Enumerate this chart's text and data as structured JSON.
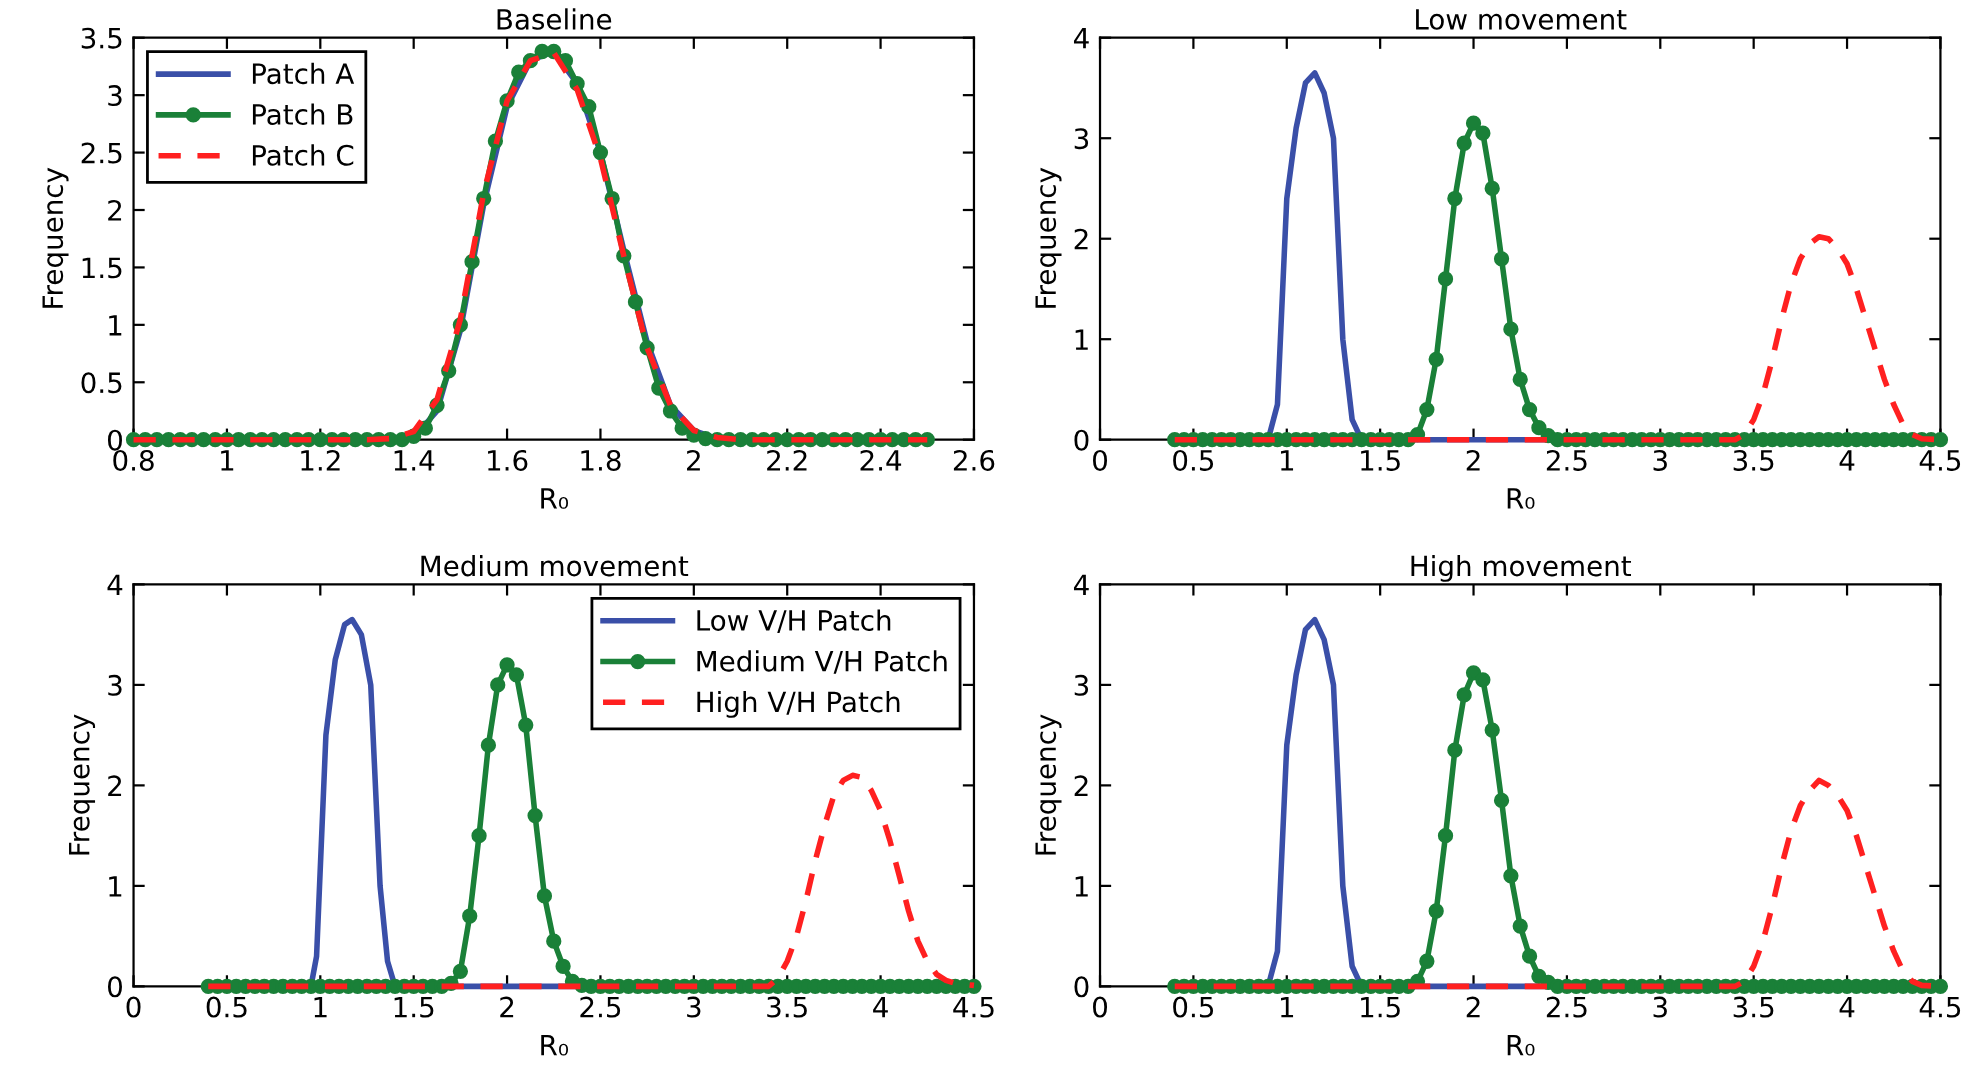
{
  "chart_data": [
    {
      "type": "line",
      "title": "Baseline",
      "xlabel": "R₀",
      "ylabel": "Frequency",
      "xlim": [
        0.8,
        2.6
      ],
      "xticks": [
        0.8,
        1,
        1.2,
        1.4,
        1.6,
        1.8,
        2,
        2.2,
        2.4,
        2.6
      ],
      "ylim": [
        0,
        3.5
      ],
      "yticks": [
        0,
        0.5,
        1,
        1.5,
        2,
        2.5,
        3,
        3.5
      ],
      "grid": false,
      "legend": "top left",
      "series": [
        {
          "name": "Patch A",
          "color": "#3a4fa8",
          "line_style": "solid",
          "marker": "none",
          "x": [
            0.8,
            1.3,
            1.4,
            1.45,
            1.5,
            1.55,
            1.6,
            1.65,
            1.7,
            1.75,
            1.8,
            1.85,
            1.9,
            1.95,
            2.0,
            2.05,
            2.1,
            2.5
          ],
          "values": [
            0,
            0,
            0.02,
            0.25,
            0.95,
            2.05,
            2.9,
            3.3,
            3.38,
            3.1,
            2.5,
            1.65,
            0.85,
            0.3,
            0.08,
            0.01,
            0,
            0
          ]
        },
        {
          "name": "Patch B",
          "color": "#1a8038",
          "line_style": "solid",
          "marker": "circle",
          "x": [
            0.8,
            0.825,
            0.85,
            0.875,
            0.9,
            0.925,
            0.95,
            0.975,
            1.0,
            1.025,
            1.05,
            1.075,
            1.1,
            1.125,
            1.15,
            1.175,
            1.2,
            1.225,
            1.25,
            1.275,
            1.3,
            1.325,
            1.35,
            1.375,
            1.4,
            1.425,
            1.45,
            1.475,
            1.5,
            1.525,
            1.55,
            1.575,
            1.6,
            1.625,
            1.65,
            1.675,
            1.7,
            1.725,
            1.75,
            1.775,
            1.8,
            1.825,
            1.85,
            1.875,
            1.9,
            1.925,
            1.95,
            1.975,
            2.0,
            2.025,
            2.05,
            2.075,
            2.1,
            2.125,
            2.15,
            2.175,
            2.2,
            2.225,
            2.25,
            2.275,
            2.3,
            2.325,
            2.35,
            2.375,
            2.4,
            2.425,
            2.45,
            2.475,
            2.5
          ],
          "values": [
            0,
            0,
            0,
            0,
            0,
            0,
            0,
            0,
            0,
            0,
            0,
            0,
            0,
            0,
            0,
            0,
            0,
            0,
            0,
            0,
            0,
            0,
            0,
            0,
            0.03,
            0.1,
            0.3,
            0.6,
            1.0,
            1.55,
            2.1,
            2.6,
            2.95,
            3.2,
            3.3,
            3.38,
            3.38,
            3.3,
            3.1,
            2.9,
            2.5,
            2.1,
            1.6,
            1.2,
            0.8,
            0.45,
            0.25,
            0.1,
            0.04,
            0.01,
            0,
            0,
            0,
            0,
            0,
            0,
            0,
            0,
            0,
            0,
            0,
            0,
            0,
            0,
            0,
            0,
            0,
            0,
            0
          ]
        },
        {
          "name": "Patch C",
          "color": "#ff2020",
          "line_style": "dashed",
          "marker": "none",
          "x": [
            0.8,
            1.3,
            1.35,
            1.4,
            1.45,
            1.5,
            1.55,
            1.6,
            1.65,
            1.7,
            1.75,
            1.8,
            1.85,
            1.9,
            1.95,
            2.0,
            2.05,
            2.1,
            2.5
          ],
          "values": [
            0,
            0,
            0.01,
            0.07,
            0.35,
            1.05,
            2.15,
            2.95,
            3.3,
            3.37,
            3.05,
            2.45,
            1.6,
            0.8,
            0.3,
            0.08,
            0.02,
            0,
            0
          ]
        }
      ]
    },
    {
      "type": "line",
      "title": "Low movement",
      "xlabel": "R₀",
      "ylabel": "Frequency",
      "xlim": [
        0,
        4.5
      ],
      "xticks": [
        0,
        0.5,
        1,
        1.5,
        2,
        2.5,
        3,
        3.5,
        4,
        4.5
      ],
      "ylim": [
        0,
        4
      ],
      "yticks": [
        0,
        1,
        2,
        3,
        4
      ],
      "grid": false,
      "series": [
        {
          "color": "#3a4fa8",
          "line_style": "solid",
          "marker": "none",
          "x": [
            0.4,
            0.9,
            0.95,
            1.0,
            1.05,
            1.1,
            1.15,
            1.2,
            1.25,
            1.3,
            1.35,
            1.4,
            2.4
          ],
          "values": [
            0,
            0,
            0.35,
            2.4,
            3.1,
            3.55,
            3.65,
            3.45,
            3.0,
            1.0,
            0.2,
            0,
            0
          ]
        },
        {
          "color": "#1a8038",
          "line_style": "solid",
          "marker": "circle",
          "x": [
            0.4,
            0.45,
            0.5,
            0.55,
            0.6,
            0.65,
            0.7,
            0.75,
            0.8,
            0.85,
            0.9,
            0.95,
            1.0,
            1.05,
            1.1,
            1.15,
            1.2,
            1.25,
            1.3,
            1.35,
            1.4,
            1.45,
            1.5,
            1.55,
            1.6,
            1.65,
            1.7,
            1.75,
            1.8,
            1.85,
            1.9,
            1.95,
            2.0,
            2.05,
            2.1,
            2.15,
            2.2,
            2.25,
            2.3,
            2.35,
            2.4,
            2.45,
            2.5,
            2.55,
            2.6,
            2.65,
            2.7,
            2.75,
            2.8,
            2.85,
            2.9,
            2.95,
            3.0,
            3.05,
            3.1,
            3.15,
            3.2,
            3.25,
            3.3,
            3.35,
            3.4,
            3.45,
            3.5,
            3.55,
            3.6,
            3.65,
            3.7,
            3.75,
            3.8,
            3.85,
            3.9,
            3.95,
            4.0,
            4.05,
            4.1,
            4.15,
            4.2,
            4.25,
            4.3,
            4.35,
            4.4,
            4.45,
            4.5
          ],
          "values": [
            0,
            0,
            0,
            0,
            0,
            0,
            0,
            0,
            0,
            0,
            0,
            0,
            0,
            0,
            0,
            0,
            0,
            0,
            0,
            0,
            0,
            0,
            0,
            0,
            0,
            0,
            0.05,
            0.3,
            0.8,
            1.6,
            2.4,
            2.95,
            3.15,
            3.05,
            2.5,
            1.8,
            1.1,
            0.6,
            0.3,
            0.12,
            0.04,
            0,
            0,
            0,
            0,
            0,
            0,
            0,
            0,
            0,
            0,
            0,
            0,
            0,
            0,
            0,
            0,
            0,
            0,
            0,
            0,
            0,
            0,
            0,
            0,
            0,
            0,
            0,
            0,
            0,
            0,
            0,
            0,
            0,
            0,
            0,
            0,
            0,
            0,
            0,
            0,
            0,
            0
          ]
        },
        {
          "color": "#ff2020",
          "line_style": "dashed",
          "marker": "none",
          "x": [
            0.4,
            3.4,
            3.45,
            3.5,
            3.55,
            3.6,
            3.65,
            3.7,
            3.75,
            3.8,
            3.85,
            3.9,
            3.95,
            4.0,
            4.05,
            4.1,
            4.15,
            4.2,
            4.25,
            4.3,
            4.35,
            4.4,
            4.5
          ],
          "values": [
            0,
            0,
            0.05,
            0.2,
            0.45,
            0.8,
            1.2,
            1.55,
            1.8,
            1.95,
            2.02,
            2.0,
            1.9,
            1.75,
            1.5,
            1.2,
            0.9,
            0.6,
            0.35,
            0.15,
            0.05,
            0.01,
            0
          ]
        }
      ]
    },
    {
      "type": "line",
      "title": "Medium movement",
      "xlabel": "R₀",
      "ylabel": "Frequency",
      "xlim": [
        0,
        4.5
      ],
      "xticks": [
        0,
        0.5,
        1,
        1.5,
        2,
        2.5,
        3,
        3.5,
        4,
        4.5
      ],
      "ylim": [
        0,
        4
      ],
      "yticks": [
        0,
        1,
        2,
        3,
        4
      ],
      "grid": false,
      "legend": "top right",
      "series": [
        {
          "name": "Low V/H Patch",
          "color": "#3a4fa8",
          "line_style": "solid",
          "marker": "none",
          "x": [
            0.4,
            0.95,
            0.98,
            1.03,
            1.08,
            1.13,
            1.17,
            1.22,
            1.27,
            1.32,
            1.36,
            1.4,
            2.4
          ],
          "values": [
            0,
            0,
            0.3,
            2.5,
            3.25,
            3.6,
            3.65,
            3.5,
            3.0,
            1.0,
            0.25,
            0,
            0
          ]
        },
        {
          "name": "Medium V/H Patch",
          "color": "#1a8038",
          "line_style": "solid",
          "marker": "circle",
          "x": [
            0.4,
            0.45,
            0.5,
            0.55,
            0.6,
            0.65,
            0.7,
            0.75,
            0.8,
            0.85,
            0.9,
            0.95,
            1.0,
            1.05,
            1.1,
            1.15,
            1.2,
            1.25,
            1.3,
            1.35,
            1.4,
            1.45,
            1.5,
            1.55,
            1.6,
            1.65,
            1.7,
            1.75,
            1.8,
            1.85,
            1.9,
            1.95,
            2.0,
            2.05,
            2.1,
            2.15,
            2.2,
            2.25,
            2.3,
            2.35,
            2.4,
            2.45,
            2.5,
            2.55,
            2.6,
            2.65,
            2.7,
            2.75,
            2.8,
            2.85,
            2.9,
            2.95,
            3.0,
            3.05,
            3.1,
            3.15,
            3.2,
            3.25,
            3.3,
            3.35,
            3.4,
            3.45,
            3.5,
            3.55,
            3.6,
            3.65,
            3.7,
            3.75,
            3.8,
            3.85,
            3.9,
            3.95,
            4.0,
            4.05,
            4.1,
            4.15,
            4.2,
            4.25,
            4.3,
            4.35,
            4.4,
            4.45,
            4.5
          ],
          "values": [
            0,
            0,
            0,
            0,
            0,
            0,
            0,
            0,
            0,
            0,
            0,
            0,
            0,
            0,
            0,
            0,
            0,
            0,
            0,
            0,
            0,
            0,
            0,
            0,
            0,
            0,
            0.03,
            0.15,
            0.7,
            1.5,
            2.4,
            3.0,
            3.2,
            3.1,
            2.6,
            1.7,
            0.9,
            0.45,
            0.2,
            0.05,
            0.01,
            0,
            0,
            0,
            0,
            0,
            0,
            0,
            0,
            0,
            0,
            0,
            0,
            0,
            0,
            0,
            0,
            0,
            0,
            0,
            0,
            0,
            0,
            0,
            0,
            0,
            0,
            0,
            0,
            0,
            0,
            0,
            0,
            0,
            0,
            0,
            0,
            0,
            0,
            0,
            0,
            0,
            0
          ]
        },
        {
          "name": "High V/H Patch",
          "color": "#ff2020",
          "line_style": "dashed",
          "marker": "none",
          "x": [
            0.4,
            3.4,
            3.45,
            3.5,
            3.55,
            3.6,
            3.65,
            3.7,
            3.75,
            3.8,
            3.85,
            3.9,
            3.95,
            4.0,
            4.05,
            4.1,
            4.15,
            4.2,
            4.25,
            4.3,
            4.35,
            4.4,
            4.5
          ],
          "values": [
            0,
            0,
            0.08,
            0.25,
            0.5,
            0.85,
            1.25,
            1.6,
            1.9,
            2.05,
            2.1,
            2.08,
            1.95,
            1.75,
            1.45,
            1.1,
            0.75,
            0.45,
            0.25,
            0.12,
            0.06,
            0.03,
            0.01
          ]
        }
      ]
    },
    {
      "type": "line",
      "title": "High movement",
      "xlabel": "R₀",
      "ylabel": "Frequency",
      "xlim": [
        0,
        4.5
      ],
      "xticks": [
        0,
        0.5,
        1,
        1.5,
        2,
        2.5,
        3,
        3.5,
        4,
        4.5
      ],
      "ylim": [
        0,
        4
      ],
      "yticks": [
        0,
        1,
        2,
        3,
        4
      ],
      "grid": false,
      "series": [
        {
          "color": "#3a4fa8",
          "line_style": "solid",
          "marker": "none",
          "x": [
            0.4,
            0.9,
            0.95,
            1.0,
            1.05,
            1.1,
            1.15,
            1.2,
            1.25,
            1.3,
            1.35,
            1.4,
            2.4
          ],
          "values": [
            0,
            0,
            0.35,
            2.4,
            3.1,
            3.55,
            3.65,
            3.45,
            3.0,
            1.0,
            0.2,
            0,
            0
          ]
        },
        {
          "color": "#1a8038",
          "line_style": "solid",
          "marker": "circle",
          "x": [
            0.4,
            0.45,
            0.5,
            0.55,
            0.6,
            0.65,
            0.7,
            0.75,
            0.8,
            0.85,
            0.9,
            0.95,
            1.0,
            1.05,
            1.1,
            1.15,
            1.2,
            1.25,
            1.3,
            1.35,
            1.4,
            1.45,
            1.5,
            1.55,
            1.6,
            1.65,
            1.7,
            1.75,
            1.8,
            1.85,
            1.9,
            1.95,
            2.0,
            2.05,
            2.1,
            2.15,
            2.2,
            2.25,
            2.3,
            2.35,
            2.4,
            2.45,
            2.5,
            2.55,
            2.6,
            2.65,
            2.7,
            2.75,
            2.8,
            2.85,
            2.9,
            2.95,
            3.0,
            3.05,
            3.1,
            3.15,
            3.2,
            3.25,
            3.3,
            3.35,
            3.4,
            3.45,
            3.5,
            3.55,
            3.6,
            3.65,
            3.7,
            3.75,
            3.8,
            3.85,
            3.9,
            3.95,
            4.0,
            4.05,
            4.1,
            4.15,
            4.2,
            4.25,
            4.3,
            4.35,
            4.4,
            4.45,
            4.5
          ],
          "values": [
            0,
            0,
            0,
            0,
            0,
            0,
            0,
            0,
            0,
            0,
            0,
            0,
            0,
            0,
            0,
            0,
            0,
            0,
            0,
            0,
            0,
            0,
            0,
            0,
            0,
            0,
            0.05,
            0.25,
            0.75,
            1.5,
            2.35,
            2.9,
            3.12,
            3.05,
            2.55,
            1.85,
            1.1,
            0.6,
            0.3,
            0.1,
            0.04,
            0,
            0,
            0,
            0,
            0,
            0,
            0,
            0,
            0,
            0,
            0,
            0,
            0,
            0,
            0,
            0,
            0,
            0,
            0,
            0,
            0,
            0,
            0,
            0,
            0,
            0,
            0,
            0,
            0,
            0,
            0,
            0,
            0,
            0,
            0,
            0,
            0,
            0,
            0,
            0,
            0,
            0
          ]
        },
        {
          "color": "#ff2020",
          "line_style": "dashed",
          "marker": "none",
          "x": [
            0.4,
            3.4,
            3.45,
            3.5,
            3.55,
            3.6,
            3.65,
            3.7,
            3.75,
            3.8,
            3.85,
            3.9,
            3.95,
            4.0,
            4.05,
            4.1,
            4.15,
            4.2,
            4.25,
            4.3,
            4.35,
            4.4,
            4.5
          ],
          "values": [
            0,
            0,
            0.05,
            0.2,
            0.45,
            0.8,
            1.2,
            1.55,
            1.8,
            1.95,
            2.05,
            2.0,
            1.9,
            1.75,
            1.5,
            1.2,
            0.9,
            0.6,
            0.35,
            0.15,
            0.05,
            0.01,
            0
          ]
        }
      ]
    }
  ]
}
